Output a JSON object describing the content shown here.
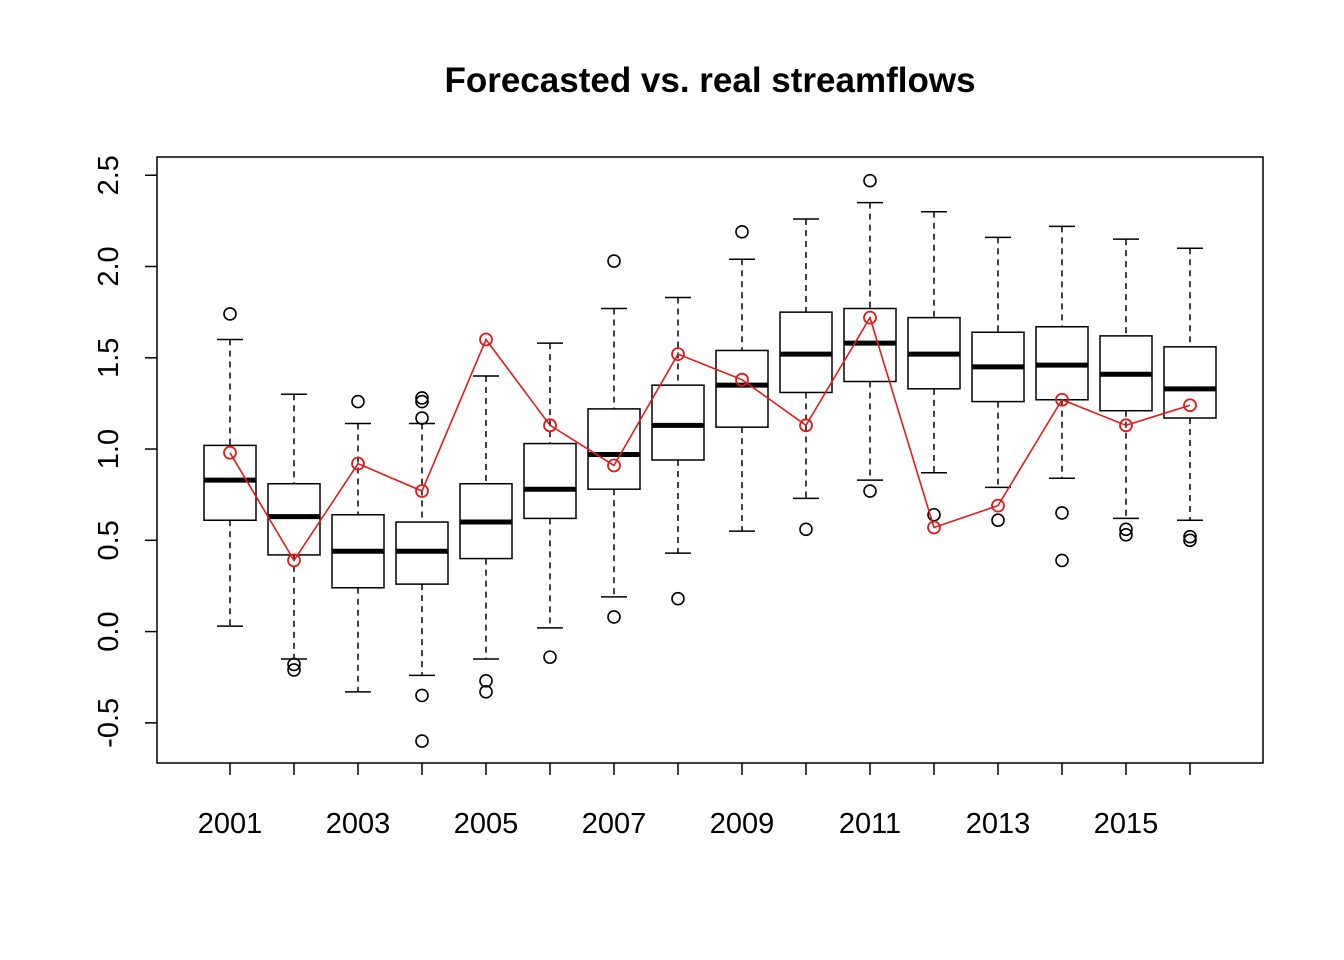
{
  "chart_data": {
    "type": "boxplot",
    "title": "Forecasted vs. real streamflows",
    "xlabel": "",
    "ylabel": "",
    "ylim": [
      -0.72,
      2.6
    ],
    "y_ticks": [
      "-0.5",
      "0.0",
      "0.5",
      "1.0",
      "1.5",
      "2.0",
      "2.5"
    ],
    "y_tick_values": [
      -0.5,
      0.0,
      0.5,
      1.0,
      1.5,
      2.0,
      2.5
    ],
    "x_tick_labels": [
      "2001",
      "2003",
      "2005",
      "2007",
      "2009",
      "2011",
      "2013",
      "2015"
    ],
    "categories": [
      "2001",
      "2002",
      "2003",
      "2004",
      "2005",
      "2006",
      "2007",
      "2008",
      "2009",
      "2010",
      "2011",
      "2012",
      "2013",
      "2014",
      "2015",
      "2016"
    ],
    "grid": false,
    "box_color": "#000000",
    "line_color": "#e31a1c",
    "boxes": [
      {
        "year": "2001",
        "whisker_low": 0.03,
        "q1": 0.61,
        "median": 0.83,
        "q3": 1.02,
        "whisker_high": 1.6,
        "outliers": [
          1.74
        ]
      },
      {
        "year": "2002",
        "whisker_low": -0.15,
        "q1": 0.42,
        "median": 0.63,
        "q3": 0.81,
        "whisker_high": 1.3,
        "outliers": [
          -0.18,
          -0.21
        ]
      },
      {
        "year": "2003",
        "whisker_low": -0.33,
        "q1": 0.24,
        "median": 0.44,
        "q3": 0.64,
        "whisker_high": 1.14,
        "outliers": [
          1.26
        ]
      },
      {
        "year": "2004",
        "whisker_low": -0.24,
        "q1": 0.26,
        "median": 0.44,
        "q3": 0.6,
        "whisker_high": 1.14,
        "outliers": [
          1.17,
          1.26,
          1.28,
          -0.35,
          -0.6
        ]
      },
      {
        "year": "2005",
        "whisker_low": -0.15,
        "q1": 0.4,
        "median": 0.6,
        "q3": 0.81,
        "whisker_high": 1.4,
        "outliers": [
          -0.27,
          -0.33
        ]
      },
      {
        "year": "2006",
        "whisker_low": 0.02,
        "q1": 0.62,
        "median": 0.78,
        "q3": 1.03,
        "whisker_high": 1.58,
        "outliers": [
          -0.14
        ]
      },
      {
        "year": "2007",
        "whisker_low": 0.19,
        "q1": 0.78,
        "median": 0.97,
        "q3": 1.22,
        "whisker_high": 1.77,
        "outliers": [
          2.03,
          0.08
        ]
      },
      {
        "year": "2008",
        "whisker_low": 0.43,
        "q1": 0.94,
        "median": 1.13,
        "q3": 1.35,
        "whisker_high": 1.83,
        "outliers": [
          0.18
        ]
      },
      {
        "year": "2009",
        "whisker_low": 0.55,
        "q1": 1.12,
        "median": 1.35,
        "q3": 1.54,
        "whisker_high": 2.04,
        "outliers": [
          2.19
        ]
      },
      {
        "year": "2010",
        "whisker_low": 0.73,
        "q1": 1.31,
        "median": 1.52,
        "q3": 1.75,
        "whisker_high": 2.26,
        "outliers": [
          0.56
        ]
      },
      {
        "year": "2011",
        "whisker_low": 0.83,
        "q1": 1.37,
        "median": 1.58,
        "q3": 1.77,
        "whisker_high": 2.35,
        "outliers": [
          2.47,
          0.77
        ]
      },
      {
        "year": "2012",
        "whisker_low": 0.87,
        "q1": 1.33,
        "median": 1.52,
        "q3": 1.72,
        "whisker_high": 2.3,
        "outliers": [
          0.64
        ]
      },
      {
        "year": "2013",
        "whisker_low": 0.79,
        "q1": 1.26,
        "median": 1.45,
        "q3": 1.64,
        "whisker_high": 2.16,
        "outliers": [
          0.61
        ]
      },
      {
        "year": "2014",
        "whisker_low": 0.84,
        "q1": 1.27,
        "median": 1.46,
        "q3": 1.67,
        "whisker_high": 2.22,
        "outliers": [
          0.65,
          0.39
        ]
      },
      {
        "year": "2015",
        "whisker_low": 0.62,
        "q1": 1.21,
        "median": 1.41,
        "q3": 1.62,
        "whisker_high": 2.15,
        "outliers": [
          0.56,
          0.53
        ]
      },
      {
        "year": "2016",
        "whisker_low": 0.61,
        "q1": 1.17,
        "median": 1.33,
        "q3": 1.56,
        "whisker_high": 2.1,
        "outliers": [
          0.52,
          0.5
        ]
      }
    ],
    "series": [
      {
        "values": [
          0.98,
          0.39,
          0.92,
          0.77,
          1.6,
          1.13,
          0.91,
          1.52,
          1.38,
          1.13,
          1.72,
          0.57,
          0.69,
          1.27,
          1.13,
          1.24
        ]
      }
    ]
  }
}
